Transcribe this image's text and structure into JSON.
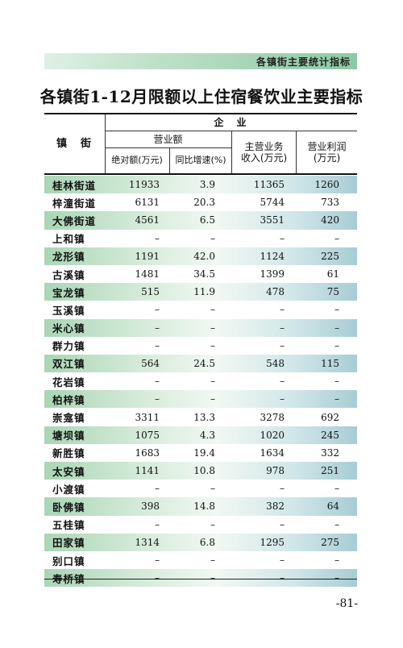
{
  "banner": {
    "text": "各镇街主要统计指标"
  },
  "title": "各镇街1-12月限额以上住宿餐饮业主要指标",
  "header": {
    "town": "镇　街",
    "enterprise": "企　业",
    "revenue": "营业额",
    "abs": "绝对额(万元)",
    "growth": "同比增速(%)",
    "main_line1": "主营业务",
    "main_line2": "收入(万元)",
    "profit_line1": "营业利润",
    "profit_line2": "(万元)"
  },
  "rows": [
    {
      "name": "桂林街道",
      "abs": "11933",
      "growth": "3.9",
      "main": "11365",
      "profit": "1260",
      "shaded": true
    },
    {
      "name": "梓潼街道",
      "abs": "6131",
      "growth": "20.3",
      "main": "5744",
      "profit": "733",
      "shaded": false
    },
    {
      "name": "大佛街道",
      "abs": "4561",
      "growth": "6.5",
      "main": "3551",
      "profit": "420",
      "shaded": true
    },
    {
      "name": "上和镇",
      "abs": "–",
      "growth": "–",
      "main": "–",
      "profit": "–",
      "shaded": false
    },
    {
      "name": "龙形镇",
      "abs": "1191",
      "growth": "42.0",
      "main": "1124",
      "profit": "225",
      "shaded": true
    },
    {
      "name": "古溪镇",
      "abs": "1481",
      "growth": "34.5",
      "main": "1399",
      "profit": "61",
      "shaded": false
    },
    {
      "name": "宝龙镇",
      "abs": "515",
      "growth": "11.9",
      "main": "478",
      "profit": "75",
      "shaded": true
    },
    {
      "name": "玉溪镇",
      "abs": "–",
      "growth": "–",
      "main": "–",
      "profit": "–",
      "shaded": false
    },
    {
      "name": "米心镇",
      "abs": "–",
      "growth": "–",
      "main": "–",
      "profit": "–",
      "shaded": true
    },
    {
      "name": "群力镇",
      "abs": "–",
      "growth": "–",
      "main": "–",
      "profit": "–",
      "shaded": false
    },
    {
      "name": "双江镇",
      "abs": "564",
      "growth": "24.5",
      "main": "548",
      "profit": "115",
      "shaded": true
    },
    {
      "name": "花岩镇",
      "abs": "–",
      "growth": "–",
      "main": "–",
      "profit": "–",
      "shaded": false
    },
    {
      "name": "柏梓镇",
      "abs": "–",
      "growth": "–",
      "main": "–",
      "profit": "–",
      "shaded": true
    },
    {
      "name": "崇龛镇",
      "abs": "3311",
      "growth": "13.3",
      "main": "3278",
      "profit": "692",
      "shaded": false
    },
    {
      "name": "塘坝镇",
      "abs": "1075",
      "growth": "4.3",
      "main": "1020",
      "profit": "245",
      "shaded": true
    },
    {
      "name": "新胜镇",
      "abs": "1683",
      "growth": "19.4",
      "main": "1634",
      "profit": "332",
      "shaded": false
    },
    {
      "name": "太安镇",
      "abs": "1141",
      "growth": "10.8",
      "main": "978",
      "profit": "251",
      "shaded": true
    },
    {
      "name": "小渡镇",
      "abs": "–",
      "growth": "–",
      "main": "–",
      "profit": "–",
      "shaded": false
    },
    {
      "name": "卧佛镇",
      "abs": "398",
      "growth": "14.8",
      "main": "382",
      "profit": "64",
      "shaded": true
    },
    {
      "name": "五桂镇",
      "abs": "–",
      "growth": "–",
      "main": "–",
      "profit": "–",
      "shaded": false
    },
    {
      "name": "田家镇",
      "abs": "1314",
      "growth": "6.8",
      "main": "1295",
      "profit": "275",
      "shaded": true
    },
    {
      "name": "别口镇",
      "abs": "–",
      "growth": "–",
      "main": "–",
      "profit": "–",
      "shaded": false
    },
    {
      "name": "寿桥镇",
      "abs": "–",
      "growth": "–",
      "main": "–",
      "profit": "–",
      "shaded": true
    }
  ],
  "page_number": "-81-"
}
